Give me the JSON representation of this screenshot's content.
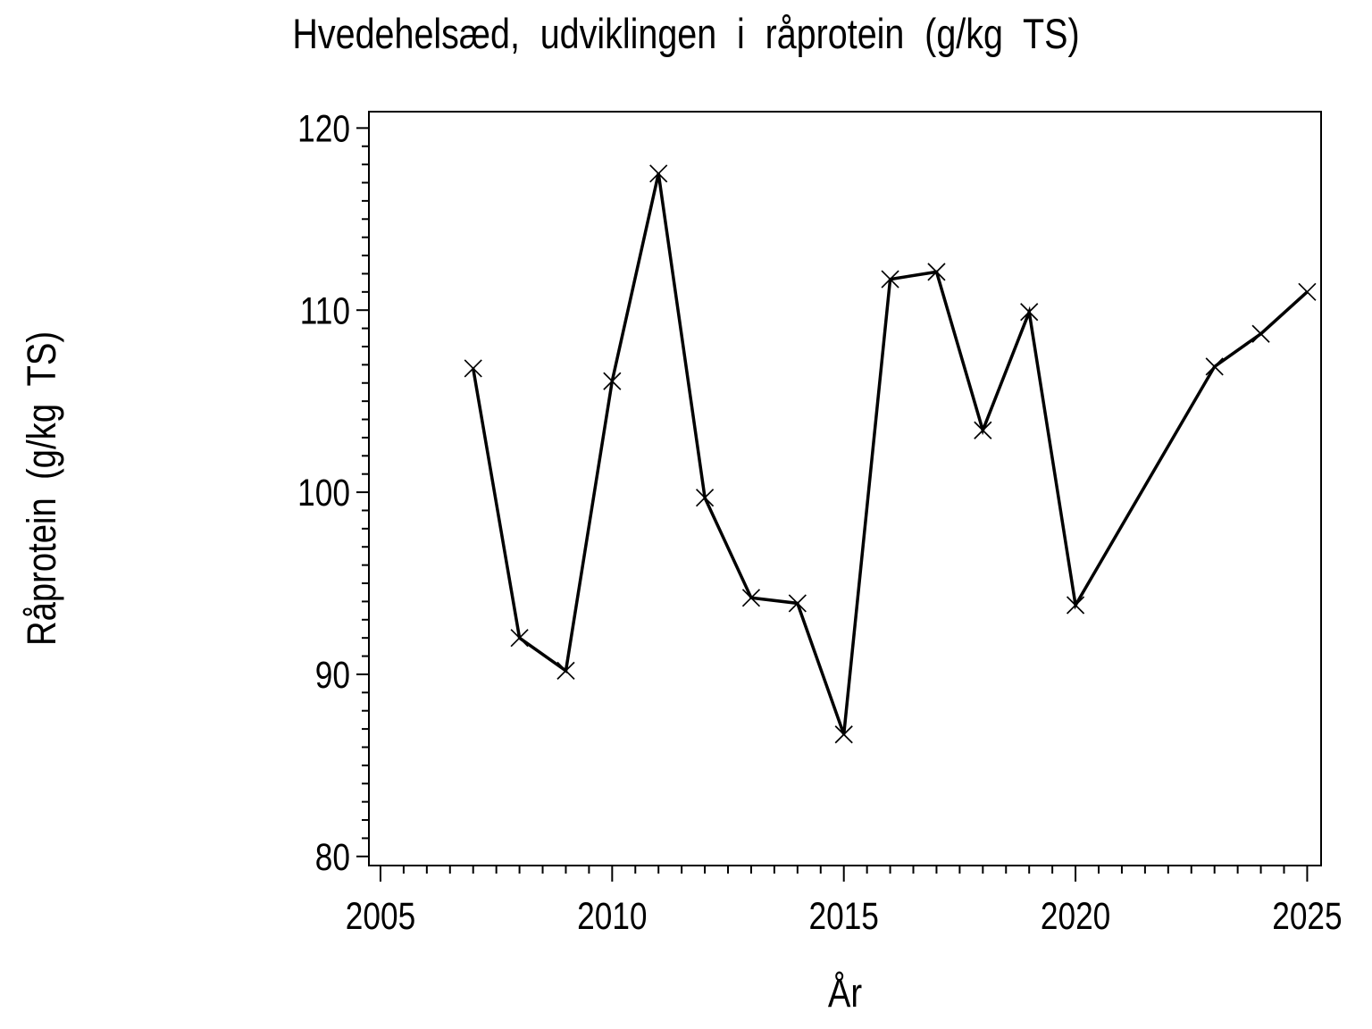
{
  "title": "Hvedehelsæd, udviklingen i råprotein (g/kg TS)",
  "chart_data": {
    "type": "line",
    "title": "Hvedehelsæd, udviklingen i råprotein (g/kg TS)",
    "xlabel": "År",
    "ylabel": "Råprotein (g/kg TS)",
    "legend": null,
    "grid": false,
    "frame": true,
    "background": "#ffffff",
    "line_color": "#000000",
    "marker": "x",
    "marker_color": "#000000",
    "xlim": [
      2004.75,
      2025.3
    ],
    "ylim": [
      79.5,
      120.9
    ],
    "x_major_ticks": [
      2005,
      2010,
      2015,
      2020,
      2025
    ],
    "x_minor_step": 0.5,
    "y_major_ticks": [
      80,
      90,
      100,
      110,
      120
    ],
    "y_minor_step": 1,
    "points": [
      {
        "year": 2007,
        "value": 106.8
      },
      {
        "year": 2008,
        "value": 92.0
      },
      {
        "year": 2009,
        "value": 90.2
      },
      {
        "year": 2010,
        "value": 106.1
      },
      {
        "year": 2011,
        "value": 117.5
      },
      {
        "year": 2012,
        "value": 99.7
      },
      {
        "year": 2013,
        "value": 94.2
      },
      {
        "year": 2014,
        "value": 93.9
      },
      {
        "year": 2015,
        "value": 86.7
      },
      {
        "year": 2016,
        "value": 111.7
      },
      {
        "year": 2017,
        "value": 112.1
      },
      {
        "year": 2018,
        "value": 103.4
      },
      {
        "year": 2019,
        "value": 109.9
      },
      {
        "year": 2020,
        "value": 93.8
      },
      {
        "year": 2023,
        "value": 106.9
      },
      {
        "year": 2024,
        "value": 108.7
      },
      {
        "year": 2025,
        "value": 111.0
      }
    ]
  }
}
